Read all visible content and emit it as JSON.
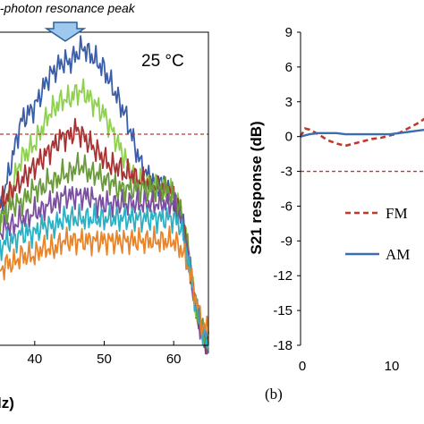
{
  "chart_data": [
    {
      "type": "line",
      "panel": "left",
      "annotation": "n-photon resonance peak",
      "temperature_label": "25 °C",
      "xlabel_fragment": "lz)",
      "xlim": [
        35,
        65
      ],
      "x_ticks": [
        "40",
        "50",
        "60"
      ],
      "reference_line": {
        "color": "#c0392b",
        "style": "dashed"
      },
      "series": [
        {
          "color": "#3b5ea8",
          "x": [
            35,
            36,
            37,
            38,
            39,
            40,
            41,
            42,
            43,
            44,
            45,
            46,
            47,
            48,
            49,
            50,
            51,
            52,
            53,
            54,
            55,
            56,
            57,
            58,
            59,
            60,
            61,
            62,
            63,
            64,
            65
          ],
          "y": [
            10,
            14,
            18,
            22,
            23,
            24,
            26,
            28,
            29,
            30,
            30,
            31,
            32,
            31,
            30,
            29,
            27,
            25,
            23,
            20,
            17,
            15,
            14,
            14,
            13,
            12,
            10,
            5,
            -2,
            -6,
            -8
          ]
        },
        {
          "color": "#8fd14f",
          "x": [
            35,
            36,
            37,
            38,
            39,
            40,
            41,
            42,
            43,
            44,
            45,
            46,
            47,
            48,
            49,
            50,
            51,
            52,
            53,
            54,
            55,
            56,
            57,
            58,
            59,
            60,
            61,
            62,
            63,
            64,
            65
          ],
          "y": [
            8,
            11,
            14,
            17,
            18,
            19,
            21,
            23,
            24,
            25,
            25,
            26,
            26,
            25,
            24,
            23,
            21,
            19,
            17,
            15,
            14,
            14,
            13,
            13,
            13,
            12,
            10,
            5,
            -2,
            -6,
            -8
          ]
        },
        {
          "color": "#a83232",
          "x": [
            35,
            36,
            37,
            38,
            39,
            40,
            41,
            42,
            43,
            44,
            45,
            46,
            47,
            48,
            49,
            50,
            51,
            52,
            53,
            54,
            55,
            56,
            57,
            58,
            59,
            60,
            61,
            62,
            63,
            64,
            65
          ],
          "y": [
            11,
            12,
            13,
            14,
            15,
            16,
            17,
            18,
            19,
            20,
            20,
            21,
            20,
            19,
            18,
            17,
            16,
            16,
            15,
            15,
            14,
            14,
            13,
            13,
            13,
            12,
            10,
            5,
            -2,
            -6,
            -8
          ]
        },
        {
          "color": "#6a9a3a",
          "x": [
            35,
            36,
            37,
            38,
            39,
            40,
            41,
            42,
            43,
            44,
            45,
            46,
            47,
            48,
            49,
            50,
            51,
            52,
            53,
            54,
            55,
            56,
            57,
            58,
            59,
            60,
            61,
            62,
            63,
            64,
            65
          ],
          "y": [
            9,
            10,
            11,
            11,
            12,
            13,
            13,
            14,
            14,
            15,
            15,
            16,
            16,
            15,
            15,
            14,
            14,
            13,
            13,
            13,
            13,
            13,
            13,
            13,
            13,
            12,
            10,
            5,
            -2,
            -6,
            -8
          ]
        },
        {
          "color": "#7b4fa0",
          "x": [
            35,
            36,
            37,
            38,
            39,
            40,
            41,
            42,
            43,
            44,
            45,
            46,
            47,
            48,
            49,
            50,
            51,
            52,
            53,
            54,
            55,
            56,
            57,
            58,
            59,
            60,
            61,
            62,
            63,
            64,
            65
          ],
          "y": [
            7,
            8,
            8,
            9,
            9,
            10,
            10,
            11,
            11,
            12,
            12,
            12,
            12,
            12,
            11,
            11,
            11,
            11,
            11,
            11,
            11,
            11,
            11,
            11,
            11,
            11,
            9,
            5,
            -2,
            -6,
            -8
          ]
        },
        {
          "color": "#2bb0c4",
          "x": [
            35,
            36,
            37,
            38,
            39,
            40,
            41,
            42,
            43,
            44,
            45,
            46,
            47,
            48,
            49,
            50,
            51,
            52,
            53,
            54,
            55,
            56,
            57,
            58,
            59,
            60,
            61,
            62,
            63,
            64,
            65
          ],
          "y": [
            5,
            6,
            6,
            7,
            7,
            7,
            8,
            8,
            8,
            9,
            9,
            9,
            9,
            9,
            9,
            9,
            9,
            9,
            9,
            9,
            9,
            9,
            9,
            9,
            9,
            9,
            8,
            4,
            -2,
            -6,
            -8
          ]
        },
        {
          "color": "#e8842a",
          "x": [
            35,
            36,
            37,
            38,
            39,
            40,
            41,
            42,
            43,
            44,
            45,
            46,
            47,
            48,
            49,
            50,
            51,
            52,
            53,
            54,
            55,
            56,
            57,
            58,
            59,
            60,
            61,
            62,
            63,
            64,
            65
          ],
          "y": [
            2,
            3,
            3,
            4,
            4,
            4,
            5,
            5,
            5,
            6,
            6,
            6,
            6,
            6,
            6,
            6,
            6,
            6,
            6,
            6,
            6,
            6,
            6,
            6,
            6,
            6,
            5,
            3,
            -1,
            -5,
            -6
          ]
        }
      ]
    },
    {
      "type": "line",
      "panel": "right",
      "ylabel": "S21 response (dB)",
      "ylim": [
        -18,
        9
      ],
      "y_ticks": [
        "9",
        "6",
        "3",
        "0",
        "-3",
        "-6",
        "-9",
        "-12",
        "-15",
        "-18"
      ],
      "xlim": [
        0,
        14
      ],
      "x_ticks": [
        "0",
        "10"
      ],
      "panel_label": "(b)",
      "reference_line_y": -3,
      "series": [
        {
          "name": "FM",
          "color": "#c0392b",
          "style": "dashed",
          "x": [
            0,
            0.5,
            1,
            2,
            3,
            4,
            5,
            6,
            7,
            8,
            9,
            10,
            11,
            12,
            13,
            14
          ],
          "y": [
            0,
            0.7,
            0.6,
            0.2,
            -0.3,
            -0.6,
            -0.8,
            -0.6,
            -0.4,
            -0.2,
            -0.1,
            0.1,
            0.3,
            0.7,
            1.1,
            1.6
          ]
        },
        {
          "name": "AM",
          "color": "#3b6db0",
          "style": "solid",
          "x": [
            0,
            0.5,
            1,
            2,
            3,
            4,
            5,
            6,
            7,
            8,
            9,
            10,
            11,
            12,
            13,
            14
          ],
          "y": [
            0,
            0.1,
            0.2,
            0.3,
            0.3,
            0.3,
            0.2,
            0.2,
            0.2,
            0.2,
            0.2,
            0.2,
            0.3,
            0.4,
            0.5,
            0.6
          ]
        }
      ]
    }
  ]
}
